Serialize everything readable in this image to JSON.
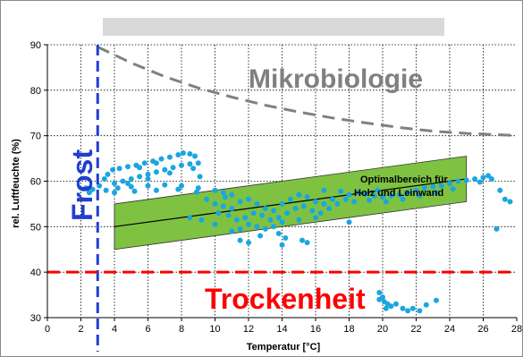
{
  "chart_data": {
    "type": "scatter",
    "xlabel": "Temperatur [°C]",
    "ylabel": "rel. Luftfeuchte (%)",
    "xlim": [
      0,
      28
    ],
    "ylim": [
      30,
      90
    ],
    "x_ticks": [
      "0",
      "2",
      "4",
      "6",
      "8",
      "10",
      "12",
      "14",
      "16",
      "18",
      "20",
      "22",
      "24",
      "26",
      "28"
    ],
    "y_ticks": [
      "30",
      "40",
      "50",
      "60",
      "70",
      "80",
      "90"
    ],
    "grid": true,
    "title_bar_color": "#d9d9d9",
    "annotations": {
      "microbiology": "Mikrobiologie",
      "frost": "Frost",
      "dryness": "Trockenheit",
      "optimal_line1": "Optimalbereich für",
      "optimal_line2": "Holz und Leinwand"
    },
    "colors": {
      "frost": "#1f3fd0",
      "dryness": "#ff0000",
      "microbiology": "#808080",
      "optimal_band": "#7fc241",
      "points": "#1aa6e0"
    },
    "frost_line_x": 3,
    "dryness_line_y": 40,
    "microbiology_curve": [
      [
        3,
        89.5
      ],
      [
        5,
        86
      ],
      [
        7,
        83
      ],
      [
        9,
        80.5
      ],
      [
        11,
        78.5
      ],
      [
        13,
        76.7
      ],
      [
        15,
        75.2
      ],
      [
        17,
        73.9
      ],
      [
        19,
        72.8
      ],
      [
        21,
        71.8
      ],
      [
        23,
        71
      ],
      [
        25,
        70.5
      ],
      [
        27,
        70.2
      ],
      [
        28,
        70
      ]
    ],
    "optimal_band": {
      "x": [
        4,
        25
      ],
      "upper": [
        55,
        65.5
      ],
      "lower": [
        45,
        55.5
      ]
    },
    "optimal_center": {
      "x": [
        4,
        25
      ],
      "y": [
        50,
        60.5
      ]
    },
    "measurements": [
      [
        2.3,
        58.5
      ],
      [
        2.5,
        57.5
      ],
      [
        2.7,
        58.2
      ],
      [
        3.1,
        59.0
      ],
      [
        3.4,
        60.5
      ],
      [
        3.6,
        61.5
      ],
      [
        3.9,
        62.5
      ],
      [
        4.3,
        62.8
      ],
      [
        4.8,
        63.2
      ],
      [
        5.3,
        63.5
      ],
      [
        5.8,
        64.0
      ],
      [
        6.3,
        64.4
      ],
      [
        6.8,
        64.9
      ],
      [
        7.3,
        65.3
      ],
      [
        7.8,
        65.8
      ],
      [
        8.1,
        66.2
      ],
      [
        8.5,
        66.0
      ],
      [
        8.8,
        65.5
      ],
      [
        6.5,
        64.0
      ],
      [
        5.5,
        63.0
      ],
      [
        4.0,
        59.5
      ],
      [
        4.5,
        60.0
      ],
      [
        5.0,
        60.5
      ],
      [
        5.5,
        61.0
      ],
      [
        6.0,
        61.5
      ],
      [
        6.5,
        62.0
      ],
      [
        7.0,
        62.5
      ],
      [
        7.5,
        63.0
      ],
      [
        8.0,
        63.5
      ],
      [
        8.5,
        63.8
      ],
      [
        9.0,
        64.0
      ],
      [
        4.8,
        59.5
      ],
      [
        6.0,
        60.5
      ],
      [
        7.3,
        61.8
      ],
      [
        8.7,
        62.8
      ],
      [
        9.1,
        61.0
      ],
      [
        3.5,
        58.0
      ],
      [
        4.2,
        58.5
      ],
      [
        5.0,
        58.8
      ],
      [
        6.0,
        59.0
      ],
      [
        7.0,
        59.2
      ],
      [
        8.0,
        59.0
      ],
      [
        9.0,
        58.5
      ],
      [
        10.0,
        58.0
      ],
      [
        10.5,
        57.5
      ],
      [
        11.0,
        57.0
      ],
      [
        4.0,
        57.5
      ],
      [
        5.2,
        57.8
      ],
      [
        6.5,
        58.0
      ],
      [
        7.8,
        58.2
      ],
      [
        8.9,
        57.6
      ],
      [
        10.6,
        56.5
      ],
      [
        9.5,
        56.0
      ],
      [
        10.0,
        55.0
      ],
      [
        10.5,
        54.5
      ],
      [
        11.0,
        54.0
      ],
      [
        11.5,
        55.5
      ],
      [
        12.0,
        56.0
      ],
      [
        12.5,
        55.0
      ],
      [
        13.0,
        54.0
      ],
      [
        13.5,
        53.5
      ],
      [
        14.0,
        55.0
      ],
      [
        14.5,
        56.0
      ],
      [
        15.0,
        57.0
      ],
      [
        15.5,
        56.5
      ],
      [
        16.0,
        55.5
      ],
      [
        16.5,
        55.0
      ],
      [
        17.0,
        56.0
      ],
      [
        10.2,
        53.0
      ],
      [
        10.8,
        52.5
      ],
      [
        11.3,
        51.5
      ],
      [
        11.8,
        52.0
      ],
      [
        12.3,
        53.0
      ],
      [
        12.8,
        52.5
      ],
      [
        13.3,
        51.5
      ],
      [
        13.8,
        52.0
      ],
      [
        14.3,
        53.0
      ],
      [
        14.8,
        54.0
      ],
      [
        15.3,
        54.5
      ],
      [
        15.8,
        53.5
      ],
      [
        16.3,
        53.0
      ],
      [
        16.8,
        54.0
      ],
      [
        17.3,
        55.0
      ],
      [
        17.8,
        56.0
      ],
      [
        12.0,
        50.5
      ],
      [
        12.5,
        50.0
      ],
      [
        13.0,
        49.5
      ],
      [
        13.5,
        50.0
      ],
      [
        14.0,
        51.0
      ],
      [
        11.5,
        49.5
      ],
      [
        15.0,
        51.5
      ],
      [
        16.0,
        52.0
      ],
      [
        13.8,
        48.5
      ],
      [
        12.7,
        48.0
      ],
      [
        14.2,
        47.5
      ],
      [
        11.0,
        49.0
      ],
      [
        9.2,
        51.5
      ],
      [
        10.0,
        50.5
      ],
      [
        8.5,
        52.0
      ],
      [
        18.0,
        57.0
      ],
      [
        18.5,
        57.5
      ],
      [
        19.0,
        57.2
      ],
      [
        19.5,
        56.8
      ],
      [
        20.0,
        56.5
      ],
      [
        20.5,
        56.8
      ],
      [
        21.0,
        57.0
      ],
      [
        21.5,
        57.5
      ],
      [
        22.0,
        58.0
      ],
      [
        22.5,
        58.5
      ],
      [
        23.0,
        58.8
      ],
      [
        23.5,
        59.0
      ],
      [
        24.0,
        59.5
      ],
      [
        24.5,
        60.0
      ],
      [
        25.0,
        60.2
      ],
      [
        25.5,
        60.5
      ],
      [
        26.0,
        60.8
      ],
      [
        26.3,
        61.2
      ],
      [
        26.5,
        60.5
      ],
      [
        25.8,
        59.8
      ],
      [
        18.3,
        55.5
      ],
      [
        19.2,
        55.8
      ],
      [
        20.2,
        55.5
      ],
      [
        21.2,
        56.0
      ],
      [
        22.2,
        56.8
      ],
      [
        23.2,
        57.5
      ],
      [
        24.2,
        58.3
      ],
      [
        19.7,
        58.0
      ],
      [
        17.5,
        57.8
      ],
      [
        16.5,
        58.0
      ],
      [
        14.0,
        46.0
      ],
      [
        15.5,
        46.5
      ],
      [
        15.2,
        47.0
      ],
      [
        11.5,
        47.0
      ],
      [
        12.0,
        46.5
      ],
      [
        27.0,
        58.0
      ],
      [
        27.3,
        56.0
      ],
      [
        27.6,
        55.5
      ],
      [
        26.8,
        49.5
      ],
      [
        18.0,
        51.0
      ],
      [
        19.8,
        35.5
      ],
      [
        20.0,
        34.5
      ],
      [
        20.1,
        33.5
      ],
      [
        20.3,
        33.0
      ],
      [
        20.5,
        32.5
      ],
      [
        20.8,
        33.0
      ],
      [
        21.2,
        32.0
      ],
      [
        21.5,
        31.5
      ],
      [
        21.8,
        32.0
      ],
      [
        22.2,
        31.5
      ],
      [
        22.6,
        32.8
      ],
      [
        23.2,
        33.8
      ],
      [
        20.2,
        32.0
      ],
      [
        19.8,
        34.0
      ]
    ]
  }
}
